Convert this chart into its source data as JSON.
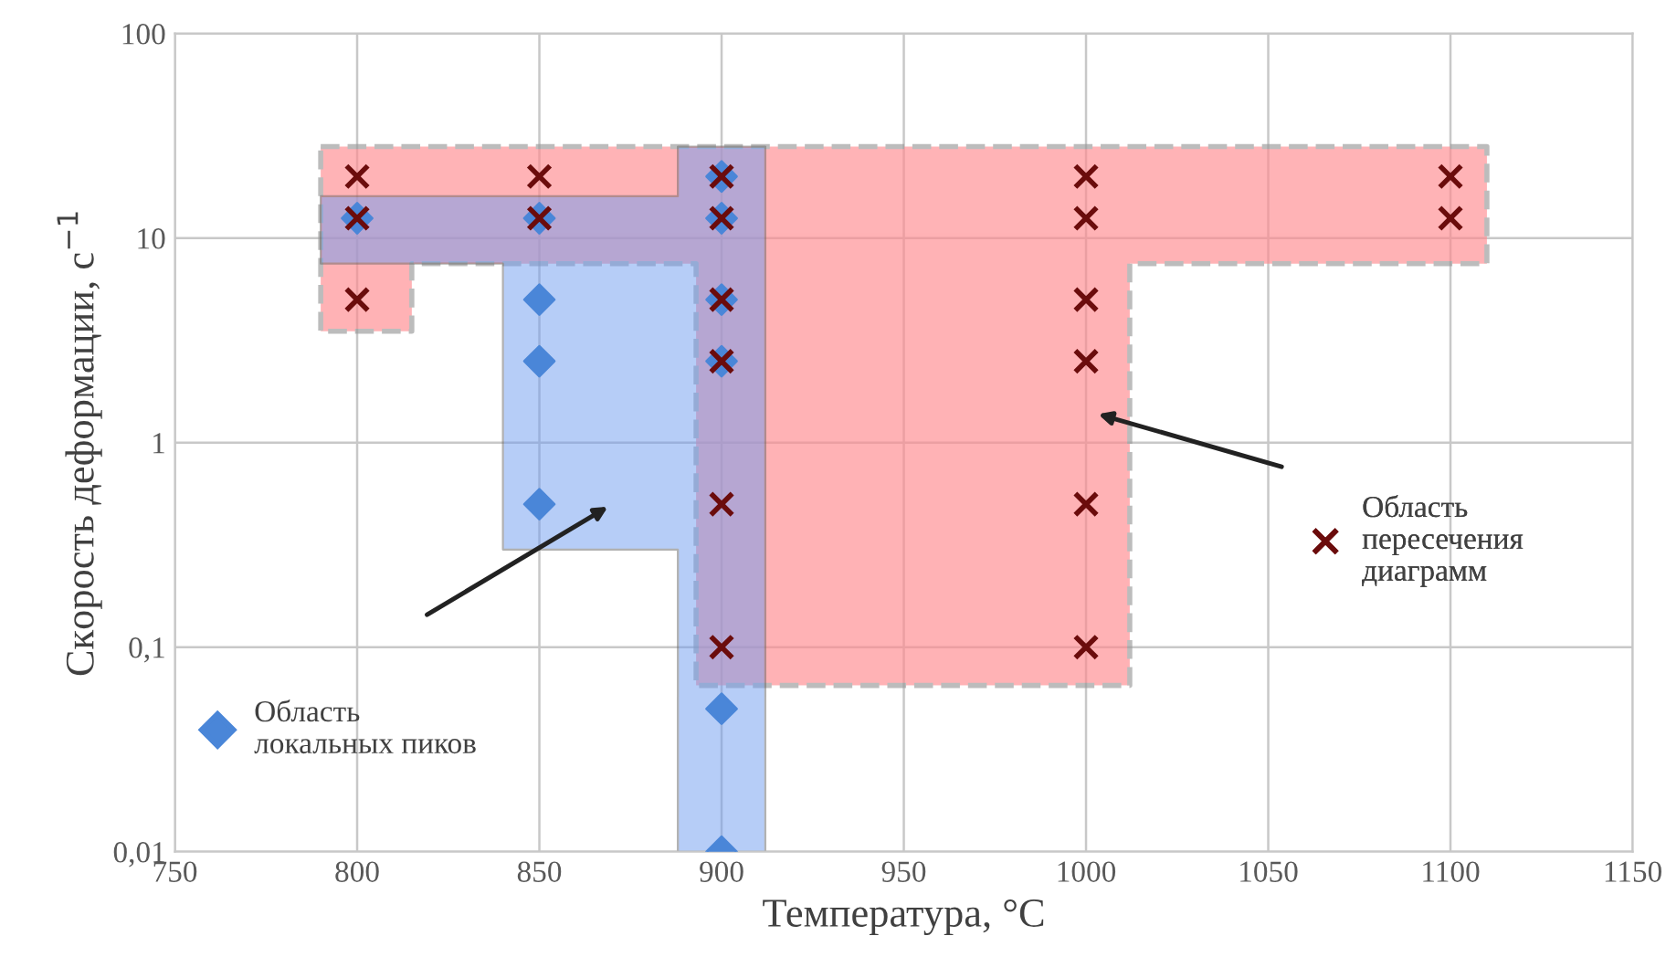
{
  "chart_data": {
    "type": "scatter",
    "xlabel": "Температура, °C",
    "ylabel": "Скорость деформации, с$^{−1}$",
    "log": "y",
    "xlim": [
      750,
      1150
    ],
    "xticks": [
      750,
      800,
      850,
      900,
      950,
      1000,
      1050,
      1100,
      1150
    ],
    "ylim": [
      0.01,
      100
    ],
    "yticks": [
      {
        "value": 0.01,
        "label": "0,01"
      },
      {
        "value": 0.1,
        "label": "0,1"
      },
      1,
      10,
      100
    ],
    "grid": true,
    "legend": "left",
    "series": [
      {
        "name": "Область\nлокальных пиков",
        "color": "#4a86d8",
        "marker": "diamond",
        "x": [
          800,
          850,
          850,
          850,
          850,
          900,
          900,
          900,
          900,
          900,
          900
        ],
        "values": [
          12.5,
          12.5,
          5,
          2.5,
          0.5,
          20,
          12.5,
          5,
          2.5,
          0.05,
          0.01
        ]
      },
      {
        "name": "Область\nпересечения\nдиаграмм",
        "color": "#6b0c0c",
        "marker": "cross",
        "x": [
          800,
          800,
          800,
          850,
          850,
          900,
          900,
          900,
          900,
          900,
          900,
          1000,
          1000,
          1000,
          1000,
          1000,
          1000,
          1100,
          1100
        ],
        "values": [
          20,
          12.5,
          5,
          20,
          12.5,
          20,
          12.5,
          5,
          2.5,
          0.5,
          0.1,
          20,
          12.5,
          5,
          2.5,
          0.5,
          0.1,
          20,
          12.5
        ]
      }
    ]
  }
}
